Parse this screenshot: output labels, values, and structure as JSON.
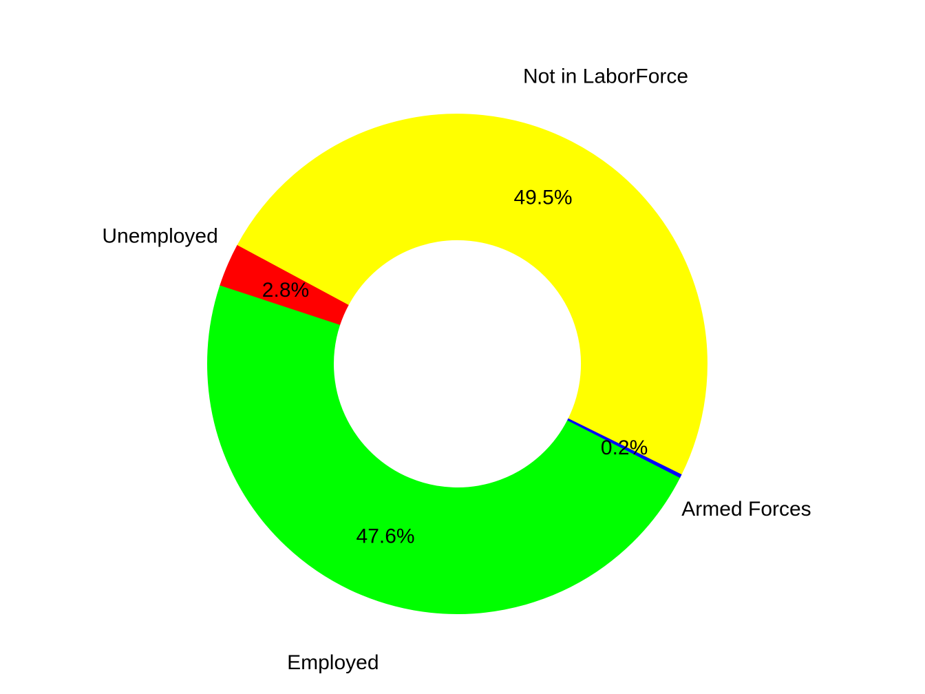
{
  "chart_data": {
    "type": "pie",
    "subtype": "donut",
    "title": "",
    "categories": [
      "Not in LaborForce",
      "Unemployed",
      "Employed",
      "Armed Forces"
    ],
    "values": [
      49.5,
      2.8,
      47.6,
      0.2
    ],
    "percent_labels": [
      "49.5%",
      "2.8%",
      "47.6%",
      "0.2%"
    ],
    "colors": [
      "#ffff00",
      "#ff0000",
      "#00ff00",
      "#0000ff"
    ],
    "start_angle_deg": -26.3,
    "direction": "counterclockwise",
    "donut_hole_ratio": 0.496,
    "legend_position": "none",
    "background_color": "#ffffff",
    "label_color": "#000000"
  }
}
